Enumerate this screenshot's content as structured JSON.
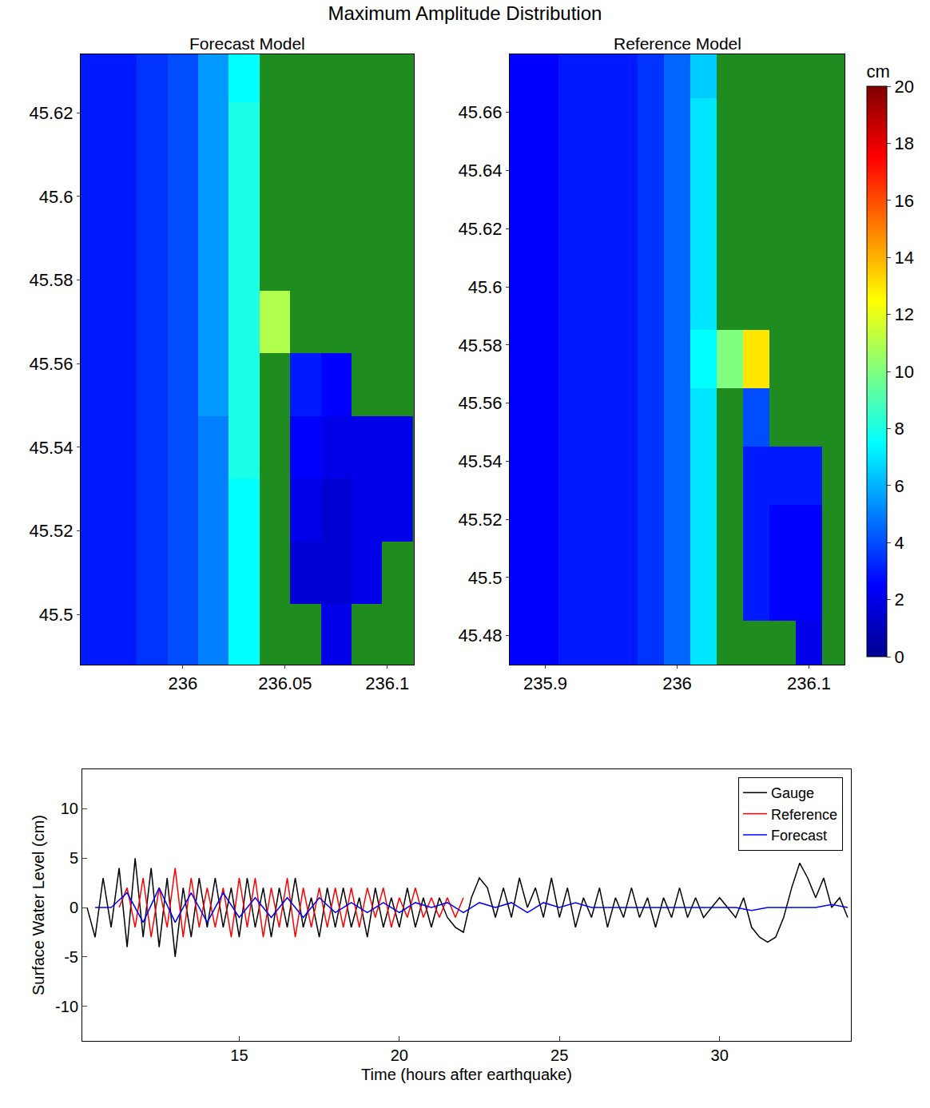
{
  "title": "Maximum Amplitude Distribution",
  "colorbar": {
    "title": "cm",
    "range": [
      0,
      20
    ],
    "ticks": [
      0,
      2,
      4,
      6,
      8,
      10,
      12,
      14,
      16,
      18,
      20
    ]
  },
  "chart_data": [
    {
      "type": "heatmap",
      "title": "Forecast Model",
      "xlim": [
        235.95,
        236.113
      ],
      "ylim": [
        45.488,
        45.634
      ],
      "xticks": [
        236,
        236.05,
        236.1
      ],
      "yticks": [
        45.5,
        45.52,
        45.54,
        45.56,
        45.58,
        45.6,
        45.62
      ],
      "x": [
        235.955,
        235.97,
        235.985,
        236.0,
        236.015,
        236.03,
        236.045,
        236.06,
        236.075,
        236.09,
        236.105
      ],
      "y": [
        45.495,
        45.51,
        45.525,
        45.54,
        45.555,
        45.57,
        45.585,
        45.6,
        45.615,
        45.63
      ],
      "z": [
        [
          3,
          3,
          3.5,
          4,
          5,
          7.5,
          null,
          null,
          2,
          null,
          null
        ],
        [
          3,
          3,
          3.5,
          4,
          5,
          7.5,
          null,
          1.5,
          1.5,
          2,
          null
        ],
        [
          3,
          3,
          3.5,
          4,
          5,
          7.5,
          null,
          2,
          1.5,
          2,
          2
        ],
        [
          3,
          3,
          3.5,
          4,
          5,
          8,
          null,
          2.5,
          2,
          2,
          2
        ],
        [
          3,
          3,
          3.5,
          4,
          5.5,
          8,
          null,
          3,
          2.5,
          null,
          null
        ],
        [
          3,
          3,
          3.5,
          4,
          5.5,
          8,
          11,
          null,
          null,
          null,
          null
        ],
        [
          3,
          3,
          3.5,
          4,
          5.5,
          8,
          null,
          null,
          null,
          null,
          null
        ],
        [
          3,
          3,
          3.5,
          4,
          5.5,
          8,
          null,
          null,
          null,
          null,
          null
        ],
        [
          3,
          3,
          3.5,
          4,
          5.5,
          8,
          null,
          null,
          null,
          null,
          null
        ],
        [
          3,
          3,
          3.5,
          4,
          5.5,
          7.5,
          null,
          null,
          null,
          null,
          null
        ]
      ]
    },
    {
      "type": "heatmap",
      "title": "Reference Model",
      "xlim": [
        235.873,
        236.127
      ],
      "ylim": [
        45.47,
        45.68
      ],
      "xticks": [
        235.9,
        236,
        236.1
      ],
      "yticks": [
        45.48,
        45.5,
        45.52,
        45.54,
        45.56,
        45.58,
        45.6,
        45.62,
        45.64,
        45.66
      ],
      "x": [
        235.88,
        235.9,
        235.92,
        235.94,
        235.96,
        235.98,
        236.0,
        236.02,
        236.04,
        236.06,
        236.08,
        236.1,
        236.12
      ],
      "y": [
        45.475,
        45.495,
        45.515,
        45.535,
        45.555,
        45.575,
        45.595,
        45.615,
        45.635,
        45.655,
        45.675
      ],
      "z": [
        [
          2.5,
          2.5,
          3,
          3,
          3,
          3.5,
          4.5,
          7,
          null,
          null,
          null,
          2,
          null
        ],
        [
          2.5,
          2.5,
          3,
          3,
          3,
          3.5,
          4.5,
          7,
          null,
          3,
          2.5,
          2.5,
          null
        ],
        [
          2.5,
          2.5,
          3,
          3,
          3,
          3.5,
          4.5,
          7,
          null,
          3,
          2.5,
          2.5,
          null
        ],
        [
          2.5,
          2.5,
          3,
          3,
          3,
          3.5,
          4.5,
          7,
          null,
          3,
          3,
          3,
          null
        ],
        [
          2.5,
          2.5,
          3,
          3,
          3,
          3.5,
          4.5,
          7,
          null,
          4,
          null,
          null,
          null
        ],
        [
          2.5,
          2.5,
          3,
          3,
          3,
          3.5,
          4.5,
          7.5,
          10,
          13,
          null,
          null,
          null
        ],
        [
          2.5,
          2.5,
          3,
          3,
          3,
          3.5,
          4.5,
          7,
          null,
          null,
          null,
          null,
          null
        ],
        [
          2.5,
          2.5,
          3,
          3,
          3,
          3.5,
          4.5,
          7,
          null,
          null,
          null,
          null,
          null
        ],
        [
          2.5,
          2.5,
          3,
          3,
          3,
          3.5,
          4.5,
          7,
          null,
          null,
          null,
          null,
          null
        ],
        [
          2.5,
          2.5,
          3,
          3,
          3,
          3.5,
          4.5,
          7,
          null,
          null,
          null,
          null,
          null
        ],
        [
          2.5,
          2.5,
          3,
          3,
          3,
          3.5,
          4.5,
          6.5,
          null,
          null,
          null,
          null,
          null
        ]
      ]
    },
    {
      "type": "line",
      "xlabel": "Time (hours after earthquake)",
      "ylabel": "Surface Water Level (cm)",
      "xlim": [
        10.1,
        34.1
      ],
      "ylim": [
        -13.5,
        14
      ],
      "xticks": [
        15,
        20,
        25,
        30
      ],
      "yticks": [
        -10,
        -5,
        0,
        5,
        10
      ],
      "legend": "upper right",
      "series": [
        {
          "name": "Gauge",
          "color": "#000000",
          "x": [
            10.25,
            10.5,
            10.75,
            11,
            11.25,
            11.5,
            11.75,
            12,
            12.25,
            12.5,
            12.75,
            13,
            13.25,
            13.5,
            13.75,
            14,
            14.25,
            14.5,
            14.75,
            15,
            15.25,
            15.5,
            15.75,
            16,
            16.25,
            16.5,
            16.75,
            17,
            17.25,
            17.5,
            17.75,
            18,
            18.25,
            18.5,
            18.75,
            19,
            19.25,
            19.5,
            19.75,
            20,
            20.25,
            20.5,
            20.75,
            21,
            21.25,
            21.5,
            21.75,
            22,
            22.25,
            22.5,
            22.75,
            23,
            23.25,
            23.5,
            23.75,
            24,
            24.25,
            24.5,
            24.75,
            25,
            25.25,
            25.5,
            25.75,
            26,
            26.25,
            26.5,
            26.75,
            27,
            27.25,
            27.5,
            27.75,
            28,
            28.25,
            28.5,
            28.75,
            29,
            29.25,
            29.5,
            29.75,
            30,
            30.25,
            30.5,
            30.75,
            31,
            31.25,
            31.5,
            31.75,
            32,
            32.25,
            32.5,
            32.75,
            33,
            33.25,
            33.5,
            33.75,
            34
          ],
          "values": [
            0,
            -3,
            3,
            -2,
            4,
            -4,
            5,
            -3,
            4,
            -4,
            3,
            -5,
            2,
            -3,
            3,
            -2,
            3,
            -2,
            2,
            -3,
            3,
            -2,
            2,
            -3,
            2,
            -2,
            3,
            -2,
            1,
            -3,
            2,
            -2,
            2,
            -2,
            1,
            -3,
            2,
            -2,
            1,
            -2,
            2,
            -2,
            1,
            -2,
            1,
            -1,
            -2,
            -2.5,
            1,
            3,
            2,
            -1,
            2,
            -1,
            3,
            0,
            2,
            -1,
            3,
            -1,
            2,
            -2,
            1,
            -1,
            2,
            -2,
            1,
            -1,
            2,
            -1,
            1,
            -2,
            1,
            -1,
            2,
            -1,
            1,
            -1,
            0,
            1,
            0,
            -1,
            1,
            -2,
            -3,
            -3.5,
            -3,
            -1,
            2,
            4.5,
            3,
            1,
            3,
            0,
            1,
            -1
          ]
        },
        {
          "name": "Reference",
          "color": "#ff0000",
          "x": [
            11.25,
            11.5,
            11.75,
            12,
            12.25,
            12.5,
            12.75,
            13,
            13.25,
            13.5,
            13.75,
            14,
            14.25,
            14.5,
            14.75,
            15,
            15.25,
            15.5,
            15.75,
            16,
            16.25,
            16.5,
            16.75,
            17,
            17.25,
            17.5,
            17.75,
            18,
            18.25,
            18.5,
            18.75,
            19,
            19.25,
            19.5,
            19.75,
            20,
            20.25,
            20.5,
            20.75,
            21,
            21.25,
            21.5,
            21.75,
            22
          ],
          "values": [
            0,
            2,
            -2,
            3,
            -3,
            2,
            -2,
            4,
            -3,
            3,
            -2,
            2,
            -2,
            2,
            -3,
            3,
            -2,
            3,
            -3,
            2,
            -2,
            3,
            -3,
            2,
            -2,
            2,
            -2,
            2,
            -2,
            2,
            -2,
            2,
            -1,
            2,
            -2,
            1,
            -1,
            2,
            -1,
            1,
            -1,
            1,
            -1,
            1
          ]
        },
        {
          "name": "Forecast",
          "color": "#0000ff",
          "x": [
            10.5,
            11,
            11.5,
            12,
            12.5,
            13,
            13.5,
            14,
            14.5,
            15,
            15.5,
            16,
            16.5,
            17,
            17.5,
            18,
            18.5,
            19,
            19.5,
            20,
            20.5,
            21,
            21.5,
            22,
            22.5,
            23,
            23.5,
            24,
            24.5,
            25,
            25.5,
            26,
            26.5,
            27,
            27.5,
            28,
            28.5,
            29,
            29.5,
            30,
            30.5,
            31,
            31.5,
            32,
            32.5,
            33,
            33.5,
            34
          ],
          "values": [
            0,
            0,
            1.5,
            -1.5,
            2,
            -1.5,
            1.5,
            -1.5,
            1.5,
            -1,
            1,
            -1,
            1,
            -1,
            1,
            -0.5,
            0.5,
            -0.5,
            0.5,
            -0.5,
            0.5,
            0,
            0.5,
            -0.5,
            0.5,
            0,
            0.5,
            -0.5,
            0.5,
            0,
            0.5,
            0,
            0,
            0,
            0,
            0,
            0,
            0,
            0,
            0,
            0,
            -0.3,
            0,
            0,
            0,
            0,
            0.3,
            0
          ]
        }
      ]
    }
  ]
}
